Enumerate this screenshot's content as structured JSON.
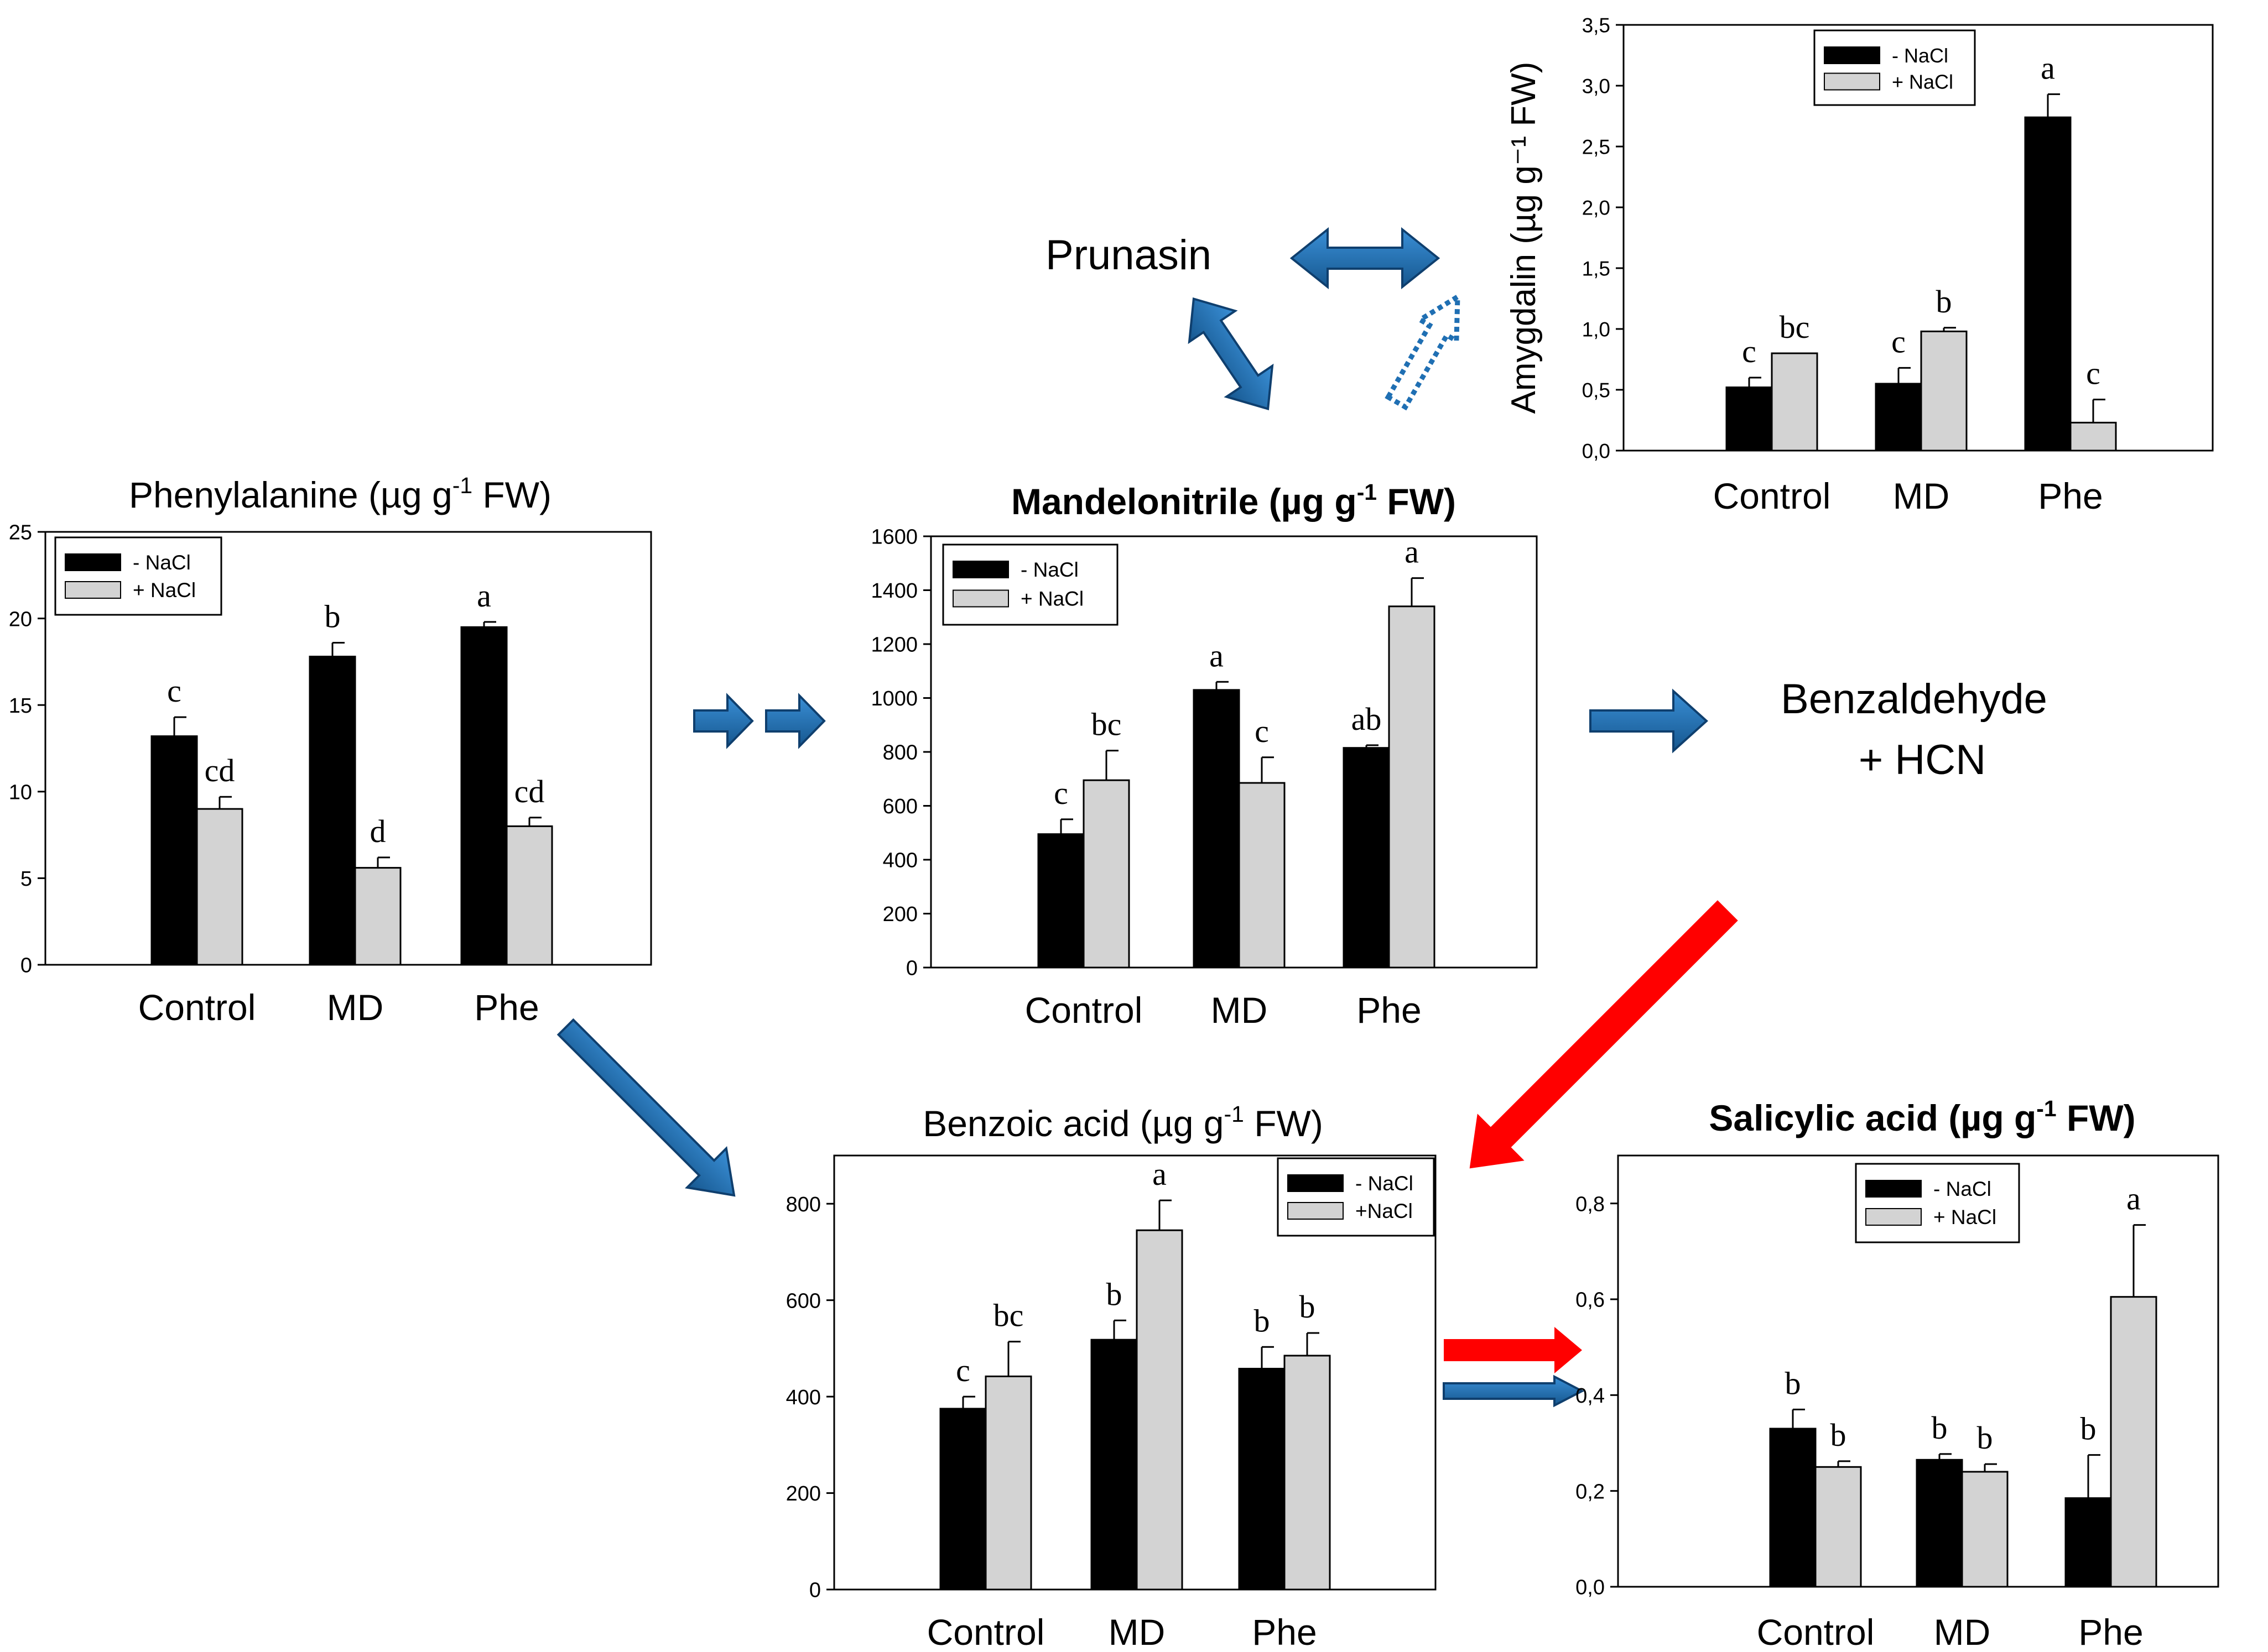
{
  "colors": {
    "minus_nacl": "#000000",
    "plus_nacl": "#d3d3d3",
    "blue_arrow": "#1f6fb3",
    "red_arrow": "#ff0000"
  },
  "nodes": {
    "prunasin": "Prunasin",
    "benzaldehyde_line1": "Benzaldehyde",
    "benzaldehyde_line2": "+ HCN"
  },
  "chart_data": [
    {
      "id": "amygdalin",
      "type": "bar",
      "title": "",
      "ylabel": "Amygdalin (µg g⁻¹ FW)",
      "ylim": [
        0,
        3.5
      ],
      "ytick_values": [
        0,
        0.5,
        1.0,
        1.5,
        2.0,
        2.5,
        3.0,
        3.5
      ],
      "ytick_labels": [
        "0,0",
        "0,5",
        "1,0",
        "1,5",
        "2,0",
        "2,5",
        "3,0",
        "3,5"
      ],
      "categories": [
        "Control",
        "MD",
        "Phe"
      ],
      "legend_position": "top-right",
      "series": [
        {
          "name": "- NaCl",
          "values": [
            0.52,
            0.55,
            2.74
          ],
          "errors": [
            0.08,
            0.13,
            0.19
          ],
          "letters": [
            "c",
            "c",
            "a"
          ]
        },
        {
          "name": "+ NaCl",
          "values": [
            0.8,
            0.98,
            0.23
          ],
          "errors": [
            0.0,
            0.03,
            0.19
          ],
          "letters": [
            "bc",
            "b",
            "c"
          ]
        }
      ]
    },
    {
      "id": "phenylalanine",
      "type": "bar",
      "title": "Phenylalanine (µg g",
      "title_sup": "-1",
      "title_tail": " FW)",
      "ylabel": "",
      "ylim": [
        0,
        25
      ],
      "ytick_values": [
        0,
        5,
        10,
        15,
        20,
        25
      ],
      "ytick_labels": [
        "0",
        "5",
        "10",
        "15",
        "20",
        "25"
      ],
      "categories": [
        "Control",
        "MD",
        "Phe"
      ],
      "legend_position": "top-left",
      "series": [
        {
          "name": "- NaCl",
          "values": [
            13.2,
            17.8,
            19.5
          ],
          "errors": [
            1.1,
            0.8,
            0.3
          ],
          "letters": [
            "c",
            "b",
            "a"
          ]
        },
        {
          "name": "+ NaCl",
          "values": [
            9.0,
            5.6,
            8.0
          ],
          "errors": [
            0.7,
            0.6,
            0.5
          ],
          "letters": [
            "cd",
            "d",
            "cd"
          ]
        }
      ]
    },
    {
      "id": "mandelonitrile",
      "type": "bar",
      "title": "Mandelonitrile (µg g",
      "title_sup": "-1",
      "title_tail": " FW)",
      "title_bold": true,
      "ylabel": "",
      "ylim": [
        0,
        1600
      ],
      "ytick_values": [
        0,
        200,
        400,
        600,
        800,
        1000,
        1200,
        1400,
        1600
      ],
      "ytick_labels": [
        "0",
        "200",
        "400",
        "600",
        "800",
        "1000",
        "1200",
        "1400",
        "1600"
      ],
      "categories": [
        "Control",
        "MD",
        "Phe"
      ],
      "legend_position": "top-left",
      "series": [
        {
          "name": "- NaCl",
          "values": [
            495,
            1030,
            815
          ],
          "errors": [
            55,
            30,
            10
          ],
          "letters": [
            "c",
            "a",
            "ab"
          ]
        },
        {
          "name": "+ NaCl",
          "values": [
            695,
            685,
            1340
          ],
          "errors": [
            110,
            95,
            105
          ],
          "letters": [
            "bc",
            "c",
            "a"
          ]
        }
      ]
    },
    {
      "id": "benzoic_acid",
      "type": "bar",
      "title": "Benzoic acid (µg g",
      "title_sup": "-1",
      "title_tail": " FW)",
      "ylabel": "",
      "ylim": [
        0,
        900
      ],
      "ytick_values": [
        0,
        200,
        400,
        600,
        800
      ],
      "ytick_labels": [
        "0",
        "200",
        "400",
        "600",
        "800"
      ],
      "categories": [
        "Control",
        "MD",
        "Phe"
      ],
      "legend_position": "top-right",
      "series": [
        {
          "name": "- NaCl",
          "values": [
            375,
            518,
            458
          ],
          "errors": [
            25,
            40,
            45
          ],
          "letters": [
            "c",
            "b",
            "b"
          ]
        },
        {
          "name": "+NaCl",
          "values": [
            442,
            745,
            485
          ],
          "errors": [
            72,
            62,
            47
          ],
          "letters": [
            "bc",
            "a",
            "b"
          ]
        }
      ]
    },
    {
      "id": "salicylic_acid",
      "type": "bar",
      "title": "Salicylic acid (µg g",
      "title_sup": "-1",
      "title_tail": " FW)",
      "title_bold": true,
      "ylabel": "",
      "ylim": [
        0,
        0.9
      ],
      "ytick_values": [
        0,
        0.2,
        0.4,
        0.6,
        0.8
      ],
      "ytick_labels": [
        "0,0",
        "0,2",
        "0,4",
        "0,6",
        "0,8"
      ],
      "categories": [
        "Control",
        "MD",
        "Phe"
      ],
      "legend_position": "top-left",
      "series": [
        {
          "name": "- NaCl",
          "values": [
            0.33,
            0.265,
            0.185
          ],
          "errors": [
            0.04,
            0.012,
            0.09
          ],
          "letters": [
            "b",
            "b",
            "b"
          ]
        },
        {
          "name": "+ NaCl",
          "values": [
            0.25,
            0.24,
            0.605
          ],
          "errors": [
            0.012,
            0.016,
            0.15
          ],
          "letters": [
            "b",
            "b",
            "a"
          ]
        }
      ]
    }
  ]
}
